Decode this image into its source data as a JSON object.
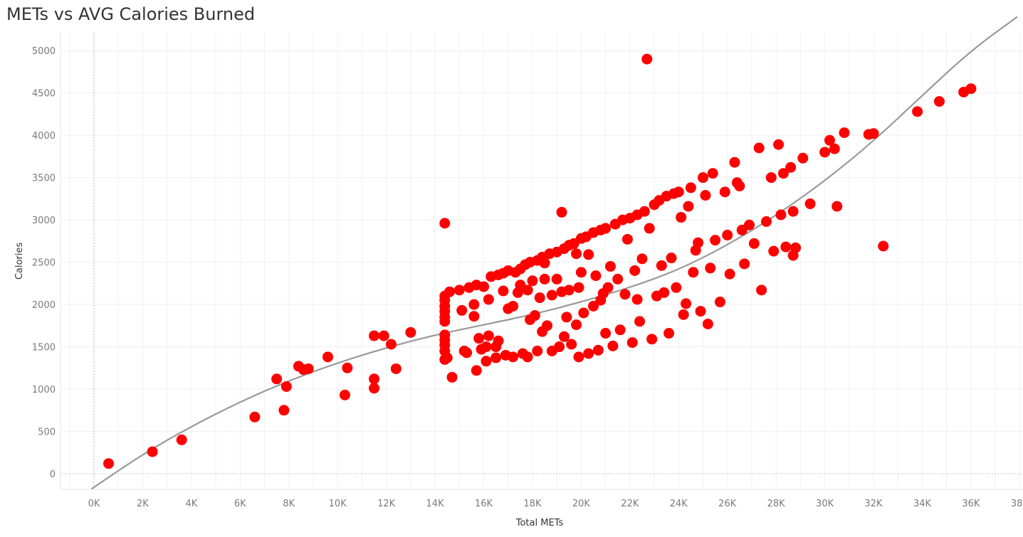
{
  "chart_data": {
    "type": "scatter",
    "title": "METs vs AVG Calories Burned",
    "xlabel": "Total METs",
    "ylabel": "Calories",
    "xlim": [
      -1300,
      38500
    ],
    "ylim": [
      -180,
      5200
    ],
    "x_ticks": [
      0,
      2000,
      4000,
      6000,
      8000,
      10000,
      12000,
      14000,
      16000,
      18000,
      20000,
      22000,
      24000,
      26000,
      28000,
      30000,
      32000,
      34000,
      36000,
      38000
    ],
    "x_tick_labels": [
      "0K",
      "2K",
      "4K",
      "6K",
      "8K",
      "10K",
      "12K",
      "14K",
      "16K",
      "18K",
      "20K",
      "22K",
      "24K",
      "26K",
      "28K",
      "30K",
      "32K",
      "34K",
      "36K",
      "38K"
    ],
    "y_ticks": [
      0,
      500,
      1000,
      1500,
      2000,
      2500,
      3000,
      3500,
      4000,
      4500,
      5000
    ],
    "y_tick_labels": [
      "0",
      "500",
      "1000",
      "1500",
      "2000",
      "2500",
      "3000",
      "3500",
      "4000",
      "4500",
      "5000"
    ],
    "grid": true,
    "legend": "none",
    "marker_color": "#ff0000",
    "trend_color": "#999999",
    "trend_line": {
      "type": "polynomial",
      "points": [
        [
          -100,
          -180
        ],
        [
          2000,
          230
        ],
        [
          4000,
          560
        ],
        [
          6000,
          850
        ],
        [
          8000,
          1100
        ],
        [
          10000,
          1310
        ],
        [
          12000,
          1490
        ],
        [
          14000,
          1640
        ],
        [
          16000,
          1760
        ],
        [
          18000,
          1880
        ],
        [
          20000,
          2030
        ],
        [
          22000,
          2200
        ],
        [
          24000,
          2410
        ],
        [
          26000,
          2700
        ],
        [
          28000,
          3050
        ],
        [
          30000,
          3460
        ],
        [
          32000,
          3930
        ],
        [
          34000,
          4470
        ],
        [
          36000,
          5000
        ],
        [
          37900,
          5400
        ]
      ]
    },
    "series": [
      {
        "values": [
          [
            600,
            120
          ],
          [
            2400,
            260
          ],
          [
            3600,
            400
          ],
          [
            6600,
            670
          ],
          [
            7500,
            1120
          ],
          [
            7800,
            750
          ],
          [
            7900,
            1030
          ],
          [
            8400,
            1270
          ],
          [
            8600,
            1230
          ],
          [
            8800,
            1240
          ],
          [
            9600,
            1380
          ],
          [
            10300,
            930
          ],
          [
            10400,
            1250
          ],
          [
            11500,
            1010
          ],
          [
            11500,
            1120
          ],
          [
            11500,
            1630
          ],
          [
            11900,
            1630
          ],
          [
            12200,
            1530
          ],
          [
            12400,
            1240
          ],
          [
            13000,
            1670
          ],
          [
            14400,
            2960
          ],
          [
            14400,
            1350
          ],
          [
            14400,
            1450
          ],
          [
            14400,
            1520
          ],
          [
            14400,
            1580
          ],
          [
            14400,
            1640
          ],
          [
            14400,
            1800
          ],
          [
            14400,
            1850
          ],
          [
            14400,
            1920
          ],
          [
            14400,
            1980
          ],
          [
            14400,
            2050
          ],
          [
            14400,
            2100
          ],
          [
            14500,
            1370
          ],
          [
            14600,
            2150
          ],
          [
            14700,
            1140
          ],
          [
            15000,
            2170
          ],
          [
            15100,
            1930
          ],
          [
            15200,
            1450
          ],
          [
            15300,
            1430
          ],
          [
            15400,
            2200
          ],
          [
            15600,
            2000
          ],
          [
            15600,
            1860
          ],
          [
            15700,
            1220
          ],
          [
            15700,
            2230
          ],
          [
            15800,
            1600
          ],
          [
            15900,
            1470
          ],
          [
            16000,
            2210
          ],
          [
            16100,
            1330
          ],
          [
            16100,
            1500
          ],
          [
            16200,
            2060
          ],
          [
            16200,
            1630
          ],
          [
            16300,
            2330
          ],
          [
            16500,
            1370
          ],
          [
            16500,
            1500
          ],
          [
            16600,
            2350
          ],
          [
            16600,
            1570
          ],
          [
            16800,
            2370
          ],
          [
            16800,
            2160
          ],
          [
            16900,
            1400
          ],
          [
            17000,
            1950
          ],
          [
            17000,
            2400
          ],
          [
            17200,
            1980
          ],
          [
            17200,
            1380
          ],
          [
            17300,
            2380
          ],
          [
            17400,
            2140
          ],
          [
            17500,
            2420
          ],
          [
            17500,
            2230
          ],
          [
            17600,
            1420
          ],
          [
            17700,
            2470
          ],
          [
            17800,
            2170
          ],
          [
            17800,
            1380
          ],
          [
            17900,
            2500
          ],
          [
            17900,
            1820
          ],
          [
            18000,
            2280
          ],
          [
            18100,
            1870
          ],
          [
            18200,
            2520
          ],
          [
            18200,
            1450
          ],
          [
            18300,
            2080
          ],
          [
            18400,
            2560
          ],
          [
            18400,
            1680
          ],
          [
            18500,
            2300
          ],
          [
            18500,
            2490
          ],
          [
            18600,
            1750
          ],
          [
            18700,
            2600
          ],
          [
            18800,
            2110
          ],
          [
            18800,
            1450
          ],
          [
            19000,
            2620
          ],
          [
            19000,
            2300
          ],
          [
            19100,
            1500
          ],
          [
            19200,
            3090
          ],
          [
            19200,
            2150
          ],
          [
            19300,
            2660
          ],
          [
            19300,
            1620
          ],
          [
            19400,
            1850
          ],
          [
            19500,
            2700
          ],
          [
            19500,
            2170
          ],
          [
            19600,
            1530
          ],
          [
            19700,
            2720
          ],
          [
            19800,
            2600
          ],
          [
            19800,
            1760
          ],
          [
            19900,
            2200
          ],
          [
            19900,
            1380
          ],
          [
            20000,
            2780
          ],
          [
            20000,
            2380
          ],
          [
            20100,
            1900
          ],
          [
            20200,
            2800
          ],
          [
            20300,
            2590
          ],
          [
            20300,
            1420
          ],
          [
            20500,
            2850
          ],
          [
            20500,
            1980
          ],
          [
            20600,
            2340
          ],
          [
            20700,
            1460
          ],
          [
            20800,
            2880
          ],
          [
            20800,
            2050
          ],
          [
            20900,
            2130
          ],
          [
            21000,
            1660
          ],
          [
            21000,
            2900
          ],
          [
            21100,
            2200
          ],
          [
            21200,
            2450
          ],
          [
            21300,
            1510
          ],
          [
            21400,
            2950
          ],
          [
            21500,
            2300
          ],
          [
            21600,
            1700
          ],
          [
            21700,
            3000
          ],
          [
            21800,
            2120
          ],
          [
            21900,
            2770
          ],
          [
            22000,
            3020
          ],
          [
            22100,
            1550
          ],
          [
            22200,
            2400
          ],
          [
            22300,
            2060
          ],
          [
            22300,
            3060
          ],
          [
            22400,
            1800
          ],
          [
            22500,
            2540
          ],
          [
            22600,
            3100
          ],
          [
            22700,
            4900
          ],
          [
            22800,
            2900
          ],
          [
            22900,
            1590
          ],
          [
            23000,
            3180
          ],
          [
            23100,
            2100
          ],
          [
            23200,
            3230
          ],
          [
            23300,
            2460
          ],
          [
            23400,
            2140
          ],
          [
            23500,
            3280
          ],
          [
            23600,
            1660
          ],
          [
            23700,
            2550
          ],
          [
            23800,
            3310
          ],
          [
            23900,
            2200
          ],
          [
            24000,
            3330
          ],
          [
            24100,
            3030
          ],
          [
            24200,
            1880
          ],
          [
            24300,
            2010
          ],
          [
            24400,
            3160
          ],
          [
            24500,
            3380
          ],
          [
            24600,
            2380
          ],
          [
            24700,
            2640
          ],
          [
            24800,
            2730
          ],
          [
            24900,
            1920
          ],
          [
            25000,
            3500
          ],
          [
            25100,
            3290
          ],
          [
            25200,
            1770
          ],
          [
            25300,
            2430
          ],
          [
            25400,
            3550
          ],
          [
            25500,
            2760
          ],
          [
            25700,
            2030
          ],
          [
            25900,
            3330
          ],
          [
            26000,
            2820
          ],
          [
            26100,
            2360
          ],
          [
            26300,
            3680
          ],
          [
            26400,
            3440
          ],
          [
            26500,
            3400
          ],
          [
            26600,
            2880
          ],
          [
            26700,
            2480
          ],
          [
            26900,
            2940
          ],
          [
            27100,
            2720
          ],
          [
            27300,
            3850
          ],
          [
            27400,
            2170
          ],
          [
            27600,
            2980
          ],
          [
            27800,
            3500
          ],
          [
            27900,
            2630
          ],
          [
            28100,
            3890
          ],
          [
            28200,
            3060
          ],
          [
            28300,
            3550
          ],
          [
            28400,
            2680
          ],
          [
            28600,
            3620
          ],
          [
            28700,
            2580
          ],
          [
            28700,
            3100
          ],
          [
            28800,
            2670
          ],
          [
            29100,
            3730
          ],
          [
            29400,
            3190
          ],
          [
            30000,
            3800
          ],
          [
            30200,
            3940
          ],
          [
            30400,
            3840
          ],
          [
            30500,
            3160
          ],
          [
            30800,
            4030
          ],
          [
            31800,
            4010
          ],
          [
            32000,
            4020
          ],
          [
            32400,
            2690
          ],
          [
            33800,
            4280
          ],
          [
            34700,
            4400
          ],
          [
            35700,
            4510
          ],
          [
            36000,
            4550
          ]
        ]
      }
    ]
  }
}
